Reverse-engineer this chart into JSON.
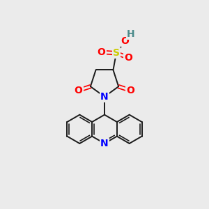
{
  "background_color": "#ebebeb",
  "bond_color": "#1a1a1a",
  "atom_colors": {
    "N_acridine": "#0000ff",
    "N_amide": "#0000ff",
    "O": "#ff0000",
    "S": "#cccc00",
    "OH_O": "#ff0000",
    "H": "#4a8a8a",
    "C": "#1a1a1a"
  },
  "figsize": [
    3.0,
    3.0
  ],
  "dpi": 100
}
